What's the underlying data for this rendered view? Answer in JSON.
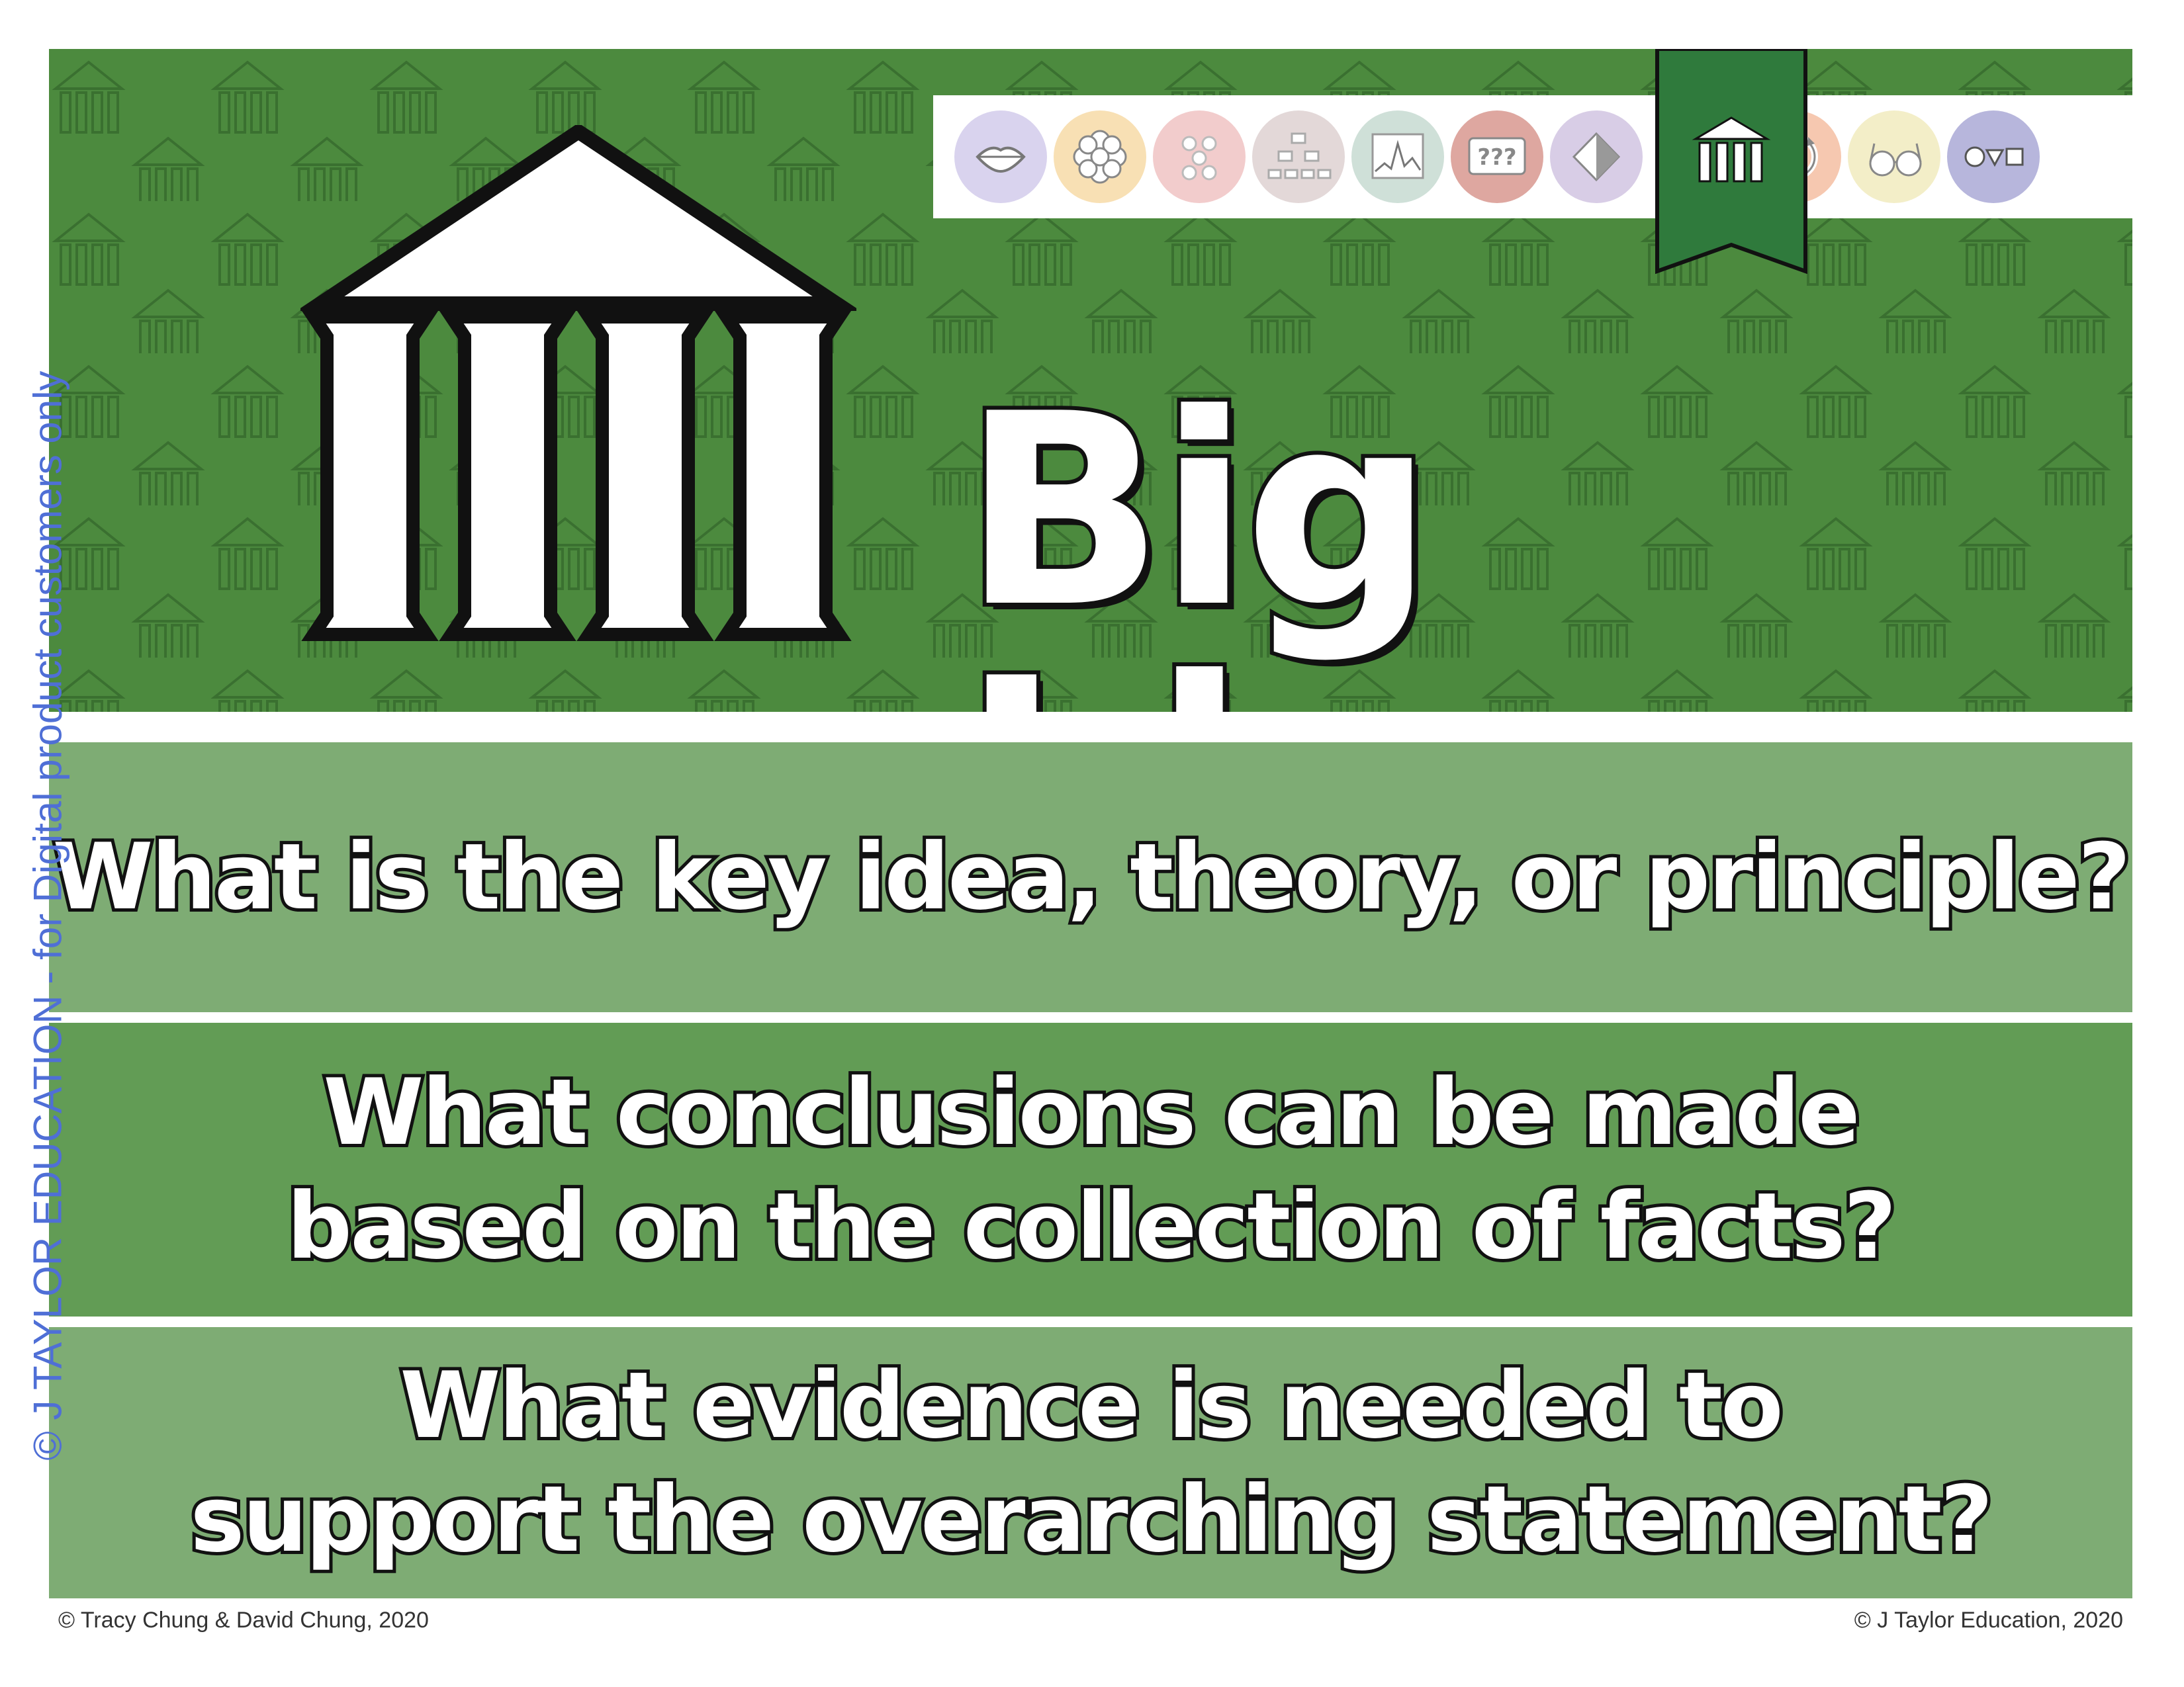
{
  "header": {
    "title": "Big Idea",
    "background_color": "#4c8a3e",
    "main_icon": "temple-icon"
  },
  "nav_icons": [
    {
      "name": "lips-icon",
      "color": "#d9d3ee"
    },
    {
      "name": "flower-icon",
      "color": "#f8e0b4"
    },
    {
      "name": "dots-icon",
      "color": "#f2cccc"
    },
    {
      "name": "hierarchy-icon",
      "color": "#e3d8d8"
    },
    {
      "name": "graph-icon",
      "color": "#cfe0d8"
    },
    {
      "name": "question-marks-icon",
      "color": "#dea7a0"
    },
    {
      "name": "diamond-icon",
      "color": "#d8cde6"
    },
    {
      "name": "temple-icon",
      "color": "#2f7a3c",
      "active": true
    },
    {
      "name": "cycle-icon",
      "color": "#f6c8b0"
    },
    {
      "name": "glasses-icon",
      "color": "#f3eec8"
    },
    {
      "name": "shapes-icon",
      "color": "#b7b6dc"
    }
  ],
  "questions": [
    {
      "lines": [
        "What is the key idea, theory, or principle?"
      ]
    },
    {
      "lines": [
        "What conclusions can be made",
        "based on the collection of facts?"
      ]
    },
    {
      "lines": [
        "What evidence is needed to",
        "support the overarching statement?"
      ]
    }
  ],
  "watermark": "© J TAYLOR EDUCATION - for Digital product customers only",
  "footer": {
    "left": "© Tracy Chung & David Chung, 2020",
    "right": "© J Taylor Education, 2020"
  }
}
